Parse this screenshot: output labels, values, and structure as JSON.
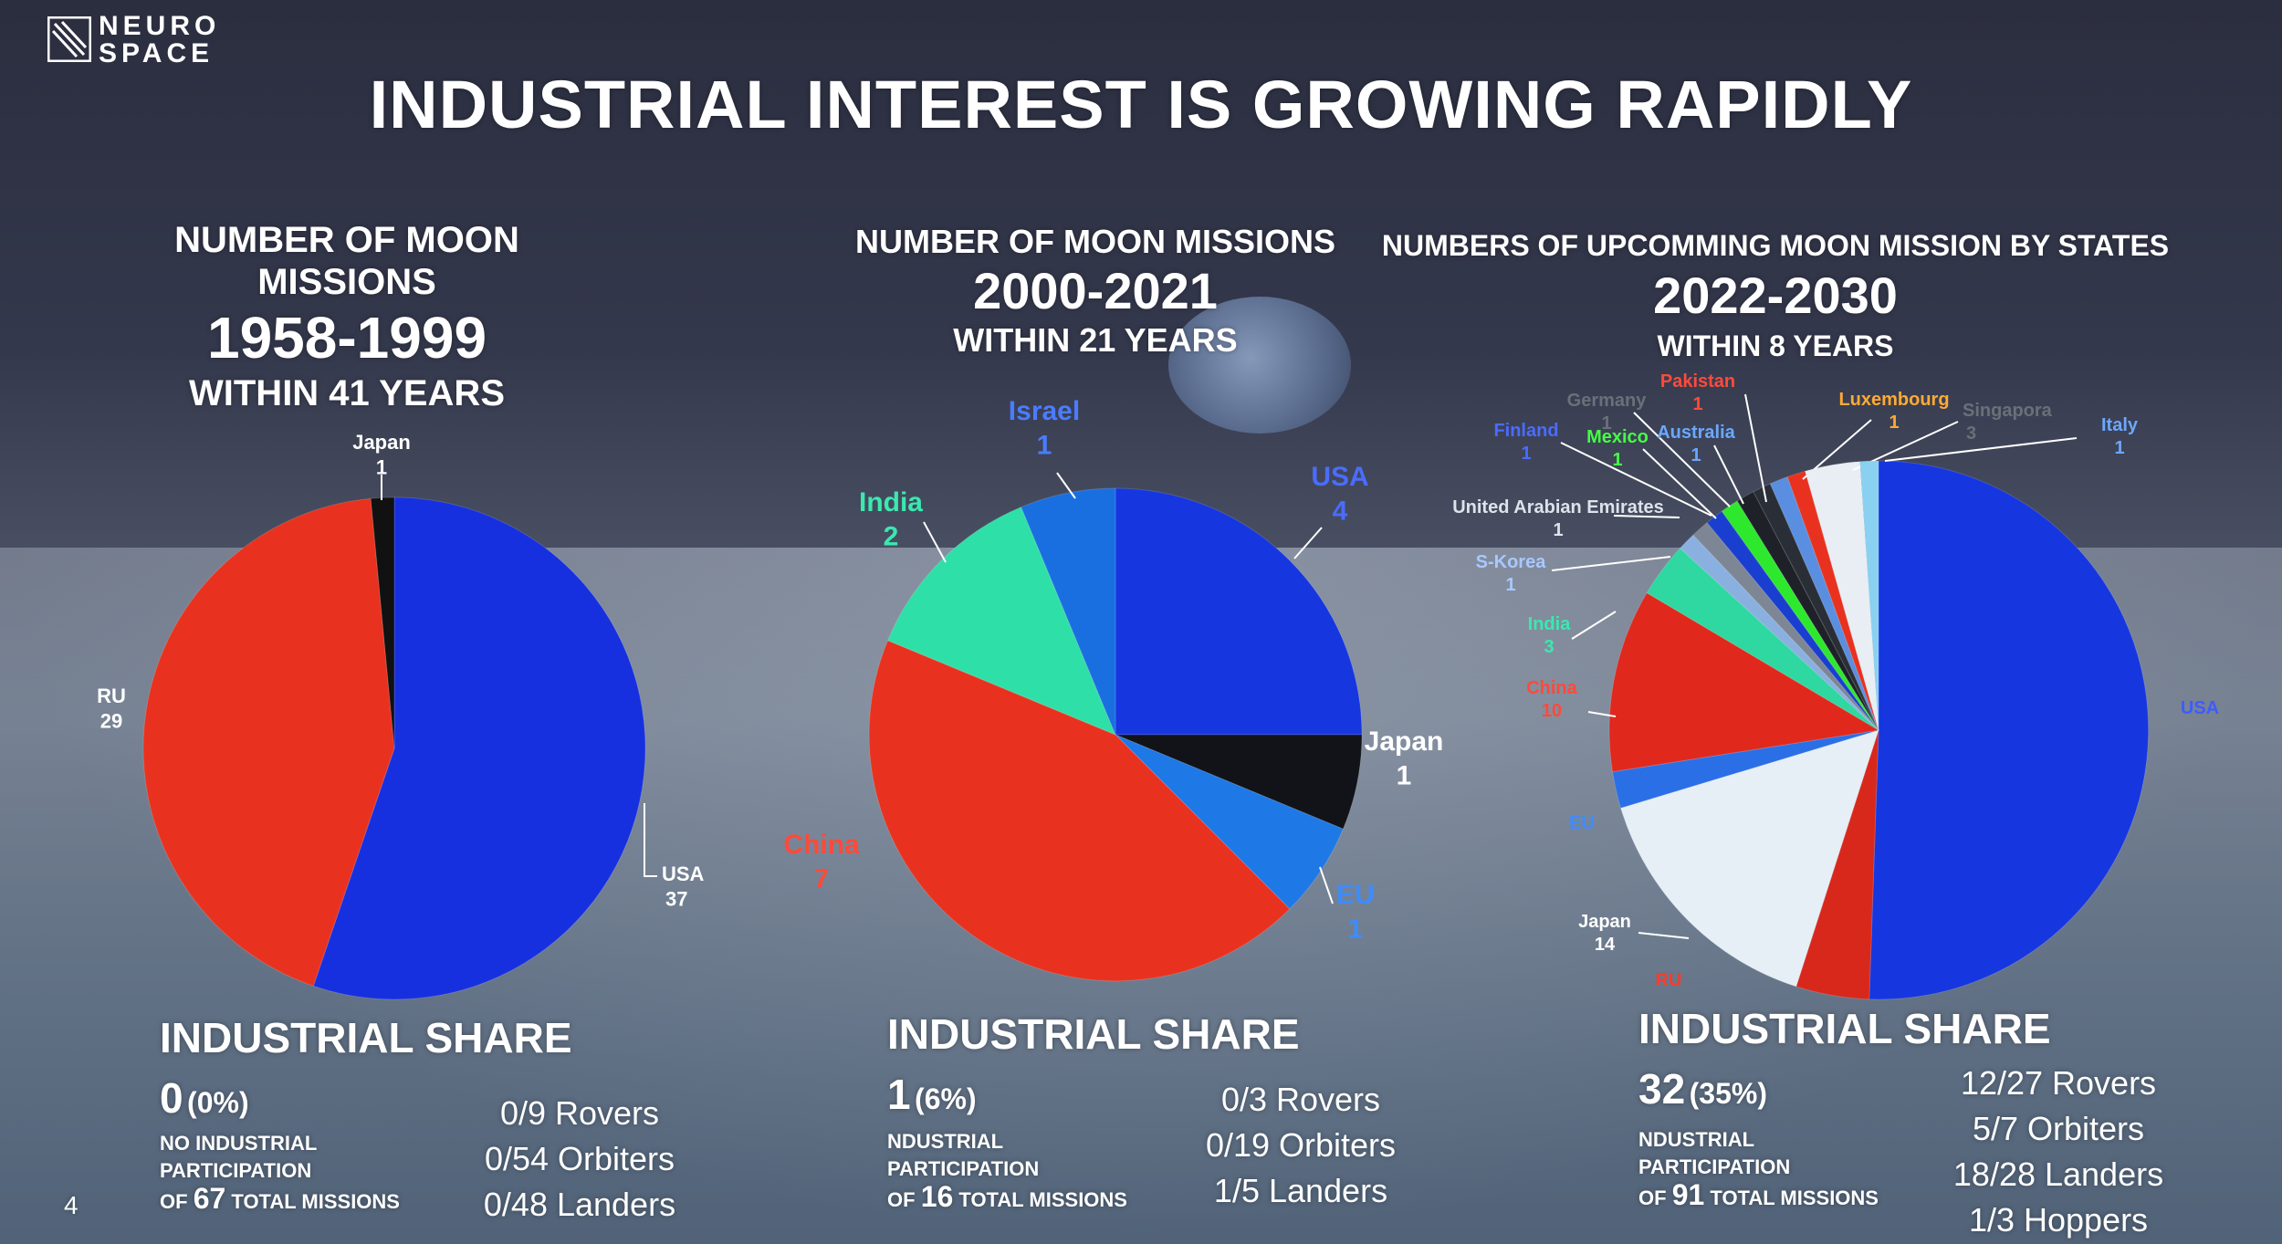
{
  "logo": {
    "line1": "NEURO",
    "line2": "SPACE"
  },
  "slide_title": "INDUSTRIAL INTEREST IS GROWING RAPIDLY",
  "page_number": "4",
  "panels": [
    {
      "heading1": "NUMBER OF MOON",
      "heading2": "MISSIONS",
      "years": "1958-1999",
      "within": "WITHIN 41 YEARS",
      "industrial": {
        "title": "INDUSTRIAL SHARE",
        "count": "0",
        "pct": "(0%)",
        "desc1": "NO INDUSTRIAL",
        "desc2": "PARTICIPATION",
        "of_prefix": "OF",
        "total": "67",
        "total_suffix": "TOTAL MISSIONS",
        "stats": [
          "0/9 Rovers",
          "0/54 Orbiters",
          "0/48 Landers"
        ]
      }
    },
    {
      "heading1": "NUMBER OF MOON MISSIONS",
      "years": "2000-2021",
      "within": "WITHIN 21 YEARS",
      "industrial": {
        "title": "INDUSTRIAL SHARE",
        "count": "1",
        "pct": "(6%)",
        "desc1": "NDUSTRIAL",
        "desc2": "PARTICIPATION",
        "of_prefix": "OF",
        "total": "16",
        "total_suffix": "TOTAL MISSIONS",
        "stats": [
          "0/3 Rovers",
          "0/19 Orbiters",
          "1/5 Landers"
        ]
      }
    },
    {
      "heading1": "NUMBERS OF UPCOMMING MOON MISSION BY STATES",
      "years": "2022-2030",
      "within": "WITHIN 8 YEARS",
      "industrial": {
        "title": "INDUSTRIAL SHARE",
        "count": "32",
        "pct": "(35%)",
        "desc1": "NDUSTRIAL",
        "desc2": "PARTICIPATION",
        "of_prefix": "OF",
        "total": "91",
        "total_suffix": "TOTAL MISSIONS",
        "stats": [
          "12/27 Rovers",
          "5/7 Orbiters",
          "18/28 Landers",
          "1/3 Hoppers"
        ]
      }
    }
  ],
  "chart_data": [
    {
      "type": "pie",
      "title": "NUMBER OF MOON MISSIONS 1958-1999",
      "slices": [
        {
          "label": "USA",
          "value": 37,
          "color": "#1630e0",
          "label_color": "#ffffff"
        },
        {
          "label": "RU",
          "value": 29,
          "color": "#e8321f",
          "label_color": "#ffffff"
        },
        {
          "label": "Japan",
          "value": 1,
          "color": "#111111",
          "label_color": "#ffffff"
        }
      ]
    },
    {
      "type": "pie",
      "title": "NUMBER OF MOON MISSIONS 2000-2021",
      "slices": [
        {
          "label": "USA",
          "value": 4,
          "color": "#1636e0",
          "label_color": "#4a6cff"
        },
        {
          "label": "Japan",
          "value": 1,
          "color": "#111318",
          "label_color": "#ffffff"
        },
        {
          "label": "EU",
          "value": 1,
          "color": "#1e78e6",
          "label_color": "#3d8cff"
        },
        {
          "label": "China",
          "value": 7,
          "color": "#e8321f",
          "label_color": "#ff4a3a"
        },
        {
          "label": "India",
          "value": 2,
          "color": "#2ee0a8",
          "label_color": "#3be8b0"
        },
        {
          "label": "Israel",
          "value": 1,
          "color": "#1a6fe0",
          "label_color": "#4a7cff"
        }
      ]
    },
    {
      "type": "pie",
      "title": "NUMBERS OF UPCOMMING MOON MISSION BY STATES 2022-2030",
      "slices": [
        {
          "label": "USA",
          "value": 46,
          "color": "#1636e0",
          "label_color": "#3d5cff",
          "value_label": "",
          "show_value": false
        },
        {
          "label": "RU",
          "value": 4,
          "color": "#d8281c",
          "label_color": "#ff3a2a",
          "show_value": false
        },
        {
          "label": "Japan",
          "value": 14,
          "color": "#e6eef6",
          "label_color": "#ffffff"
        },
        {
          "label": "EU",
          "value": 2,
          "color": "#2a6fe6",
          "label_color": "#3d8cff",
          "show_value": false
        },
        {
          "label": "China",
          "value": 10,
          "color": "#e0281c",
          "label_color": "#ff4a3a"
        },
        {
          "label": "India",
          "value": 3,
          "color": "#2ed8a0",
          "label_color": "#3be8b0"
        },
        {
          "label": "S-Korea",
          "value": 1,
          "color": "#8ab0e0",
          "label_color": "#a8c8ff"
        },
        {
          "label": "United Arabian Emirates",
          "value": 1,
          "color": "#7d8694",
          "label_color": "#dde3ea"
        },
        {
          "label": "Finland",
          "value": 1,
          "color": "#1a3fd0",
          "label_color": "#4a6cff"
        },
        {
          "label": "Mexico",
          "value": 1,
          "color": "#2ee82e",
          "label_color": "#44ff44"
        },
        {
          "label": "Germany",
          "value": 1,
          "color": "#1e2228",
          "label_color": "#6a7078"
        },
        {
          "label": "Australia",
          "value": 1,
          "color": "#2a2e36",
          "label_color": "#6aa8ff"
        },
        {
          "label": "Pakistan",
          "value": 1,
          "color": "#5a8ee0",
          "label_color": "#ff4a3a"
        },
        {
          "label": "Luxembourg",
          "value": 1,
          "color": "#e8321f",
          "label_color": "#ffaa33"
        },
        {
          "label": "Singapora",
          "value": 3,
          "color": "#e8eef4",
          "label_color": "#6a7078"
        },
        {
          "label": "Italy",
          "value": 1,
          "color": "#8ad0f0",
          "label_color": "#6aa8ff"
        }
      ]
    }
  ]
}
